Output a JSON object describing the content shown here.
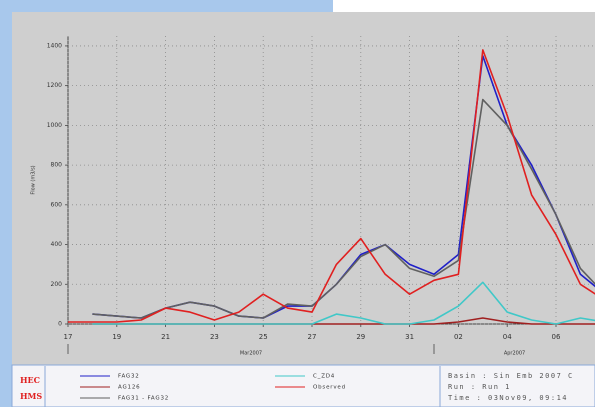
{
  "chart_data": {
    "type": "line",
    "y_label": "Flow (m3/s)",
    "x": [
      "2007-03-17",
      "2007-03-18",
      "2007-03-19",
      "2007-03-20",
      "2007-03-21",
      "2007-03-22",
      "2007-03-23",
      "2007-03-24",
      "2007-03-25",
      "2007-03-26",
      "2007-03-27",
      "2007-03-28",
      "2007-03-29",
      "2007-03-30",
      "2007-03-31",
      "2007-04-01",
      "2007-04-02",
      "2007-04-03",
      "2007-04-04",
      "2007-04-05",
      "2007-04-06",
      "2007-04-07",
      "2007-04-08"
    ],
    "series": [
      {
        "name": "FAG32",
        "color": "#2020c8",
        "values": [
          null,
          50,
          40,
          30,
          80,
          110,
          90,
          40,
          30,
          90,
          90,
          200,
          350,
          400,
          300,
          250,
          350,
          1350,
          1000,
          800,
          550,
          250,
          150
        ]
      },
      {
        "name": "AG126",
        "color": "#a02020",
        "values": [
          null,
          0,
          0,
          0,
          0,
          0,
          0,
          0,
          0,
          0,
          0,
          0,
          0,
          0,
          0,
          0,
          10,
          30,
          10,
          0,
          0,
          0,
          0
        ]
      },
      {
        "name": "FAG31 - FAG32",
        "color": "#606060",
        "values": [
          null,
          50,
          40,
          30,
          80,
          110,
          90,
          40,
          30,
          100,
          90,
          200,
          340,
          400,
          280,
          240,
          320,
          1130,
          1000,
          780,
          550,
          280,
          150
        ]
      },
      {
        "name": "C_ZD4",
        "color": "#40c8c8",
        "values": [
          null,
          0,
          0,
          0,
          0,
          0,
          0,
          0,
          0,
          0,
          0,
          50,
          30,
          0,
          0,
          20,
          90,
          210,
          60,
          20,
          0,
          30,
          10
        ]
      },
      {
        "name": "Observed",
        "color": "#e02020",
        "values": [
          10,
          10,
          10,
          20,
          80,
          60,
          20,
          60,
          150,
          80,
          60,
          300,
          430,
          250,
          150,
          220,
          250,
          1380,
          1050,
          650,
          450,
          200,
          120
        ]
      }
    ],
    "xlim": [
      "2007-03-17",
      "2007-04-08"
    ],
    "xticks": [
      {
        "value": "2007-03-17",
        "label": "17"
      },
      {
        "value": "2007-03-19",
        "label": "19"
      },
      {
        "value": "2007-03-21",
        "label": "21"
      },
      {
        "value": "2007-03-23",
        "label": "23"
      },
      {
        "value": "2007-03-25",
        "label": "25"
      },
      {
        "value": "2007-03-27",
        "label": "27"
      },
      {
        "value": "2007-03-29",
        "label": "29"
      },
      {
        "value": "2007-03-31",
        "label": "31"
      },
      {
        "value": "2007-04-02",
        "label": "02"
      },
      {
        "value": "2007-04-04",
        "label": "04"
      },
      {
        "value": "2007-04-06",
        "label": "06"
      }
    ],
    "months": [
      {
        "value": "2007-03-01",
        "label": "Mar2007"
      },
      {
        "value": "2007-04-01",
        "label": "Apr2007"
      }
    ],
    "ylim": [
      0,
      1450
    ],
    "yticks": [
      0,
      200,
      400,
      600,
      800,
      1000,
      1200,
      1400
    ],
    "grid": true,
    "logo": [
      "HEC",
      "HMS"
    ],
    "info": [
      "Basin : Sin Emb 2007 C",
      "Run : Run 1",
      "Time : 03Nov09, 09:14"
    ]
  }
}
